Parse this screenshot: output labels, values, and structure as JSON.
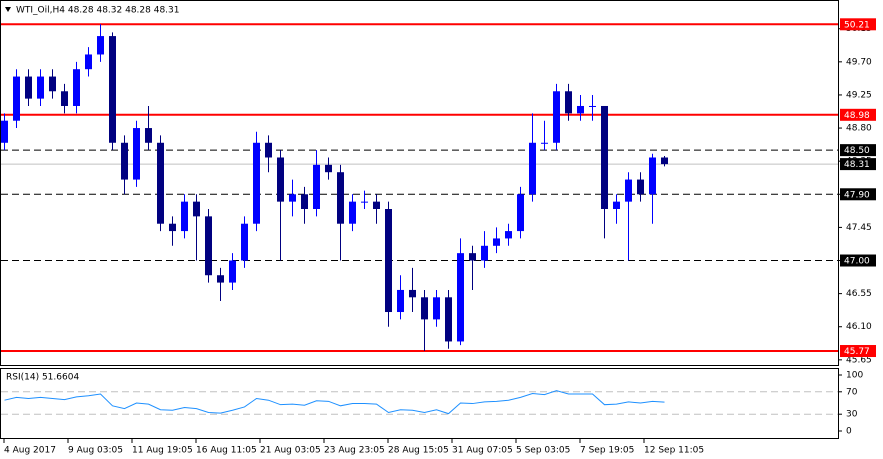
{
  "chart_data": [
    {
      "type": "candlestick",
      "title": "WTI_Oil,H4  48.28 48.32 48.28 48.31",
      "open": [
        48.6,
        48.9,
        49.5,
        49.2,
        49.5,
        49.3,
        49.1,
        49.6,
        49.8,
        50.05,
        48.6,
        48.1,
        48.8,
        48.6,
        47.5,
        47.4,
        47.8,
        47.6,
        46.8,
        46.7,
        47.0,
        47.5,
        48.6,
        48.4,
        47.8,
        47.9,
        47.7,
        48.3,
        48.2,
        47.5,
        47.8,
        47.8,
        47.7,
        46.3,
        46.6,
        46.5,
        46.2,
        46.5,
        45.9,
        47.1,
        47.0,
        47.2,
        47.3,
        47.4,
        47.9,
        48.6,
        48.6,
        49.3,
        49.0,
        49.1,
        49.1,
        47.7,
        47.8,
        48.1,
        47.9,
        48.4
      ],
      "high": [
        49.0,
        49.6,
        49.6,
        49.6,
        49.6,
        49.4,
        49.7,
        49.9,
        50.21,
        50.1,
        48.7,
        48.9,
        49.1,
        48.7,
        47.6,
        47.9,
        47.9,
        47.7,
        46.9,
        47.1,
        47.6,
        48.75,
        48.7,
        48.5,
        48.1,
        48.0,
        48.5,
        48.4,
        48.3,
        47.9,
        47.95,
        47.9,
        47.8,
        46.8,
        46.9,
        46.6,
        46.6,
        46.6,
        47.3,
        47.2,
        47.4,
        47.45,
        47.5,
        48.0,
        49.0,
        48.9,
        49.4,
        49.4,
        49.25,
        49.25,
        49.1,
        47.9,
        48.2,
        48.2,
        48.45,
        48.42
      ],
      "low": [
        48.5,
        48.8,
        49.1,
        49.1,
        49.2,
        49.0,
        49.0,
        49.5,
        49.7,
        48.5,
        47.9,
        48.0,
        48.5,
        47.4,
        47.2,
        47.3,
        47.0,
        46.7,
        46.45,
        46.6,
        46.9,
        47.4,
        48.2,
        47.0,
        47.6,
        47.5,
        47.6,
        48.1,
        47.0,
        47.4,
        47.7,
        47.5,
        46.1,
        46.2,
        46.3,
        45.77,
        46.1,
        45.8,
        45.85,
        46.6,
        46.9,
        47.1,
        47.2,
        47.3,
        47.8,
        48.5,
        48.5,
        48.9,
        48.9,
        48.9,
        47.3,
        47.5,
        47.0,
        47.8,
        47.5,
        48.28
      ],
      "close": [
        48.9,
        49.5,
        49.2,
        49.5,
        49.3,
        49.1,
        49.6,
        49.8,
        50.05,
        48.6,
        48.1,
        48.8,
        48.6,
        47.5,
        47.4,
        47.8,
        47.6,
        46.8,
        46.7,
        47.0,
        47.5,
        48.6,
        48.4,
        47.8,
        47.9,
        47.7,
        48.3,
        48.2,
        47.5,
        47.8,
        47.8,
        47.7,
        46.3,
        46.6,
        46.5,
        46.2,
        46.5,
        45.9,
        47.1,
        47.0,
        47.2,
        47.3,
        47.4,
        47.9,
        48.6,
        48.6,
        49.3,
        49.0,
        49.1,
        49.1,
        47.7,
        47.8,
        48.1,
        47.9,
        48.4,
        48.31
      ],
      "up_color": "#0000ff",
      "down_color": "#000080",
      "ylim": [
        45.58,
        50.35
      ],
      "yticks": [
        50.15,
        {
          "value": 49.7,
          "label": "49.70"
        },
        49.25,
        {
          "value": 48.8,
          "label": "48.80"
        },
        48.35,
        {
          "value": 47.9,
          "label": "47.90"
        },
        47.45,
        {
          "value": 47,
          "label": "47.00"
        },
        46.55,
        {
          "value": 46.1,
          "label": "46.10"
        },
        45.65
      ],
      "levels": [
        {
          "value": 50.21,
          "color": "#ff0000",
          "style": "solid",
          "box_color": "#ff0000"
        },
        {
          "value": 48.98,
          "color": "#ff0000",
          "style": "solid",
          "box_color": "#ff0000"
        },
        {
          "value": 48.5,
          "label": "48.50",
          "color": "#000000",
          "style": "dashed",
          "box_color": "#000000"
        },
        {
          "value": 48.31,
          "color": "#c0c0c0",
          "style": "solid",
          "box_color": "#000000"
        },
        {
          "value": 47.9,
          "label": "47.90",
          "color": "#000000",
          "style": "dashed",
          "box_color": "#000000"
        },
        {
          "value": 47,
          "label": "47.00",
          "color": "#000000",
          "style": "dashed",
          "box_color": "#000000"
        },
        {
          "value": 45.77,
          "color": "#ff0000",
          "style": "solid",
          "box_color": "#ff0000"
        }
      ],
      "x_labels": [
        "4 Aug 2017",
        "9 Aug 03:05",
        "11 Aug 19:05",
        "16 Aug 11:05",
        "21 Aug 03:05",
        "23 Aug 23:05",
        "28 Aug 15:05",
        "31 Aug 07:05",
        "5 Sep 03:05",
        "7 Sep 19:05",
        "12 Sep 11:05"
      ]
    },
    {
      "type": "line",
      "title": "RSI(14) 51.6604",
      "color": "#1e90ff",
      "values": [
        55,
        60,
        58,
        60,
        58,
        56,
        61,
        63,
        66,
        45,
        40,
        50,
        48,
        38,
        37,
        42,
        40,
        33,
        32,
        37,
        43,
        58,
        55,
        47,
        48,
        46,
        54,
        53,
        45,
        49,
        49,
        48,
        33,
        38,
        37,
        33,
        38,
        31,
        50,
        49,
        52,
        53,
        55,
        60,
        67,
        65,
        72,
        66,
        66,
        66,
        47,
        48,
        52,
        50,
        53,
        51.6604
      ],
      "ylim": [
        -12.5,
        112.5
      ],
      "yticks": [
        100,
        70,
        30,
        0
      ],
      "levels": [
        {
          "value": 70,
          "color": "#c0c0c0",
          "style": "dashed"
        },
        {
          "value": 30,
          "color": "#c0c0c0",
          "style": "dashed"
        }
      ]
    }
  ]
}
